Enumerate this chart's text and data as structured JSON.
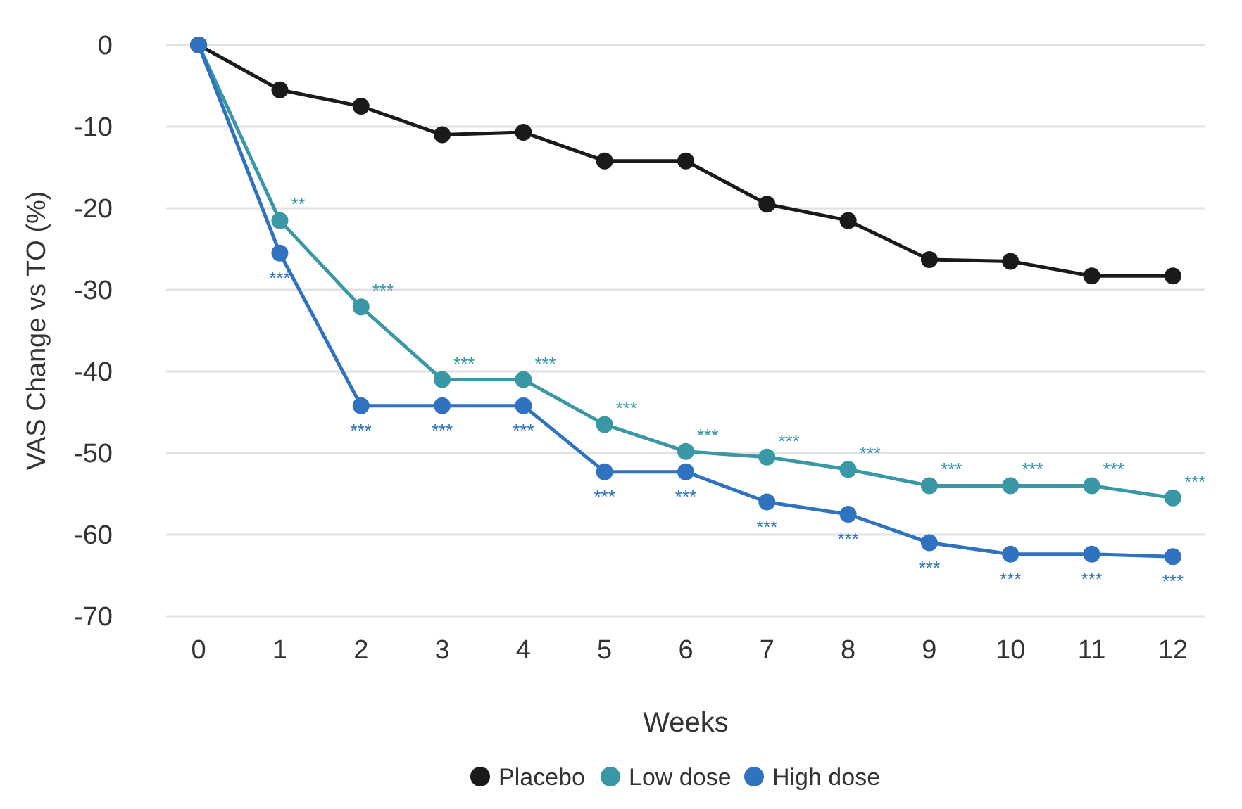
{
  "chart_data": {
    "type": "line",
    "xlabel": "Weeks",
    "ylabel": "VAS Change vs TO (%)",
    "x": [
      0,
      1,
      2,
      3,
      4,
      5,
      6,
      7,
      8,
      9,
      10,
      11,
      12
    ],
    "xlim": [
      -0.4,
      12.4
    ],
    "xticks": [
      0,
      1,
      2,
      3,
      4,
      5,
      6,
      7,
      8,
      9,
      10,
      11,
      12
    ],
    "ylim": [
      -70,
      0
    ],
    "yticks": [
      0,
      -10,
      -20,
      -30,
      -40,
      -50,
      -60,
      -70
    ],
    "grid": "y",
    "legend": "bottom",
    "marker": "circle",
    "line_style": "solid",
    "series": [
      {
        "name": "Placebo",
        "color": "#1a1a1a",
        "values": [
          0,
          -5.5,
          -7.5,
          -11,
          -10.7,
          -14.2,
          -14.2,
          -19.5,
          -21.5,
          -26.3,
          -26.5,
          -28.3,
          -28.3
        ]
      },
      {
        "name": "Low dose",
        "color": "#3a98a6",
        "values": [
          0,
          -21.5,
          -32.1,
          -41,
          -41,
          -46.5,
          -49.8,
          -50.5,
          -52,
          -54,
          -54,
          -54,
          -55.5
        ],
        "value_labels": [
          null,
          "**",
          "***",
          "***",
          "***",
          "***",
          "***",
          "***",
          "***",
          "***",
          "***",
          "***",
          "***"
        ]
      },
      {
        "name": "High dose",
        "color": "#2f72c0",
        "values": [
          0,
          -25.5,
          -44.2,
          -44.2,
          -44.2,
          -52.3,
          -52.3,
          -56,
          -57.5,
          -61,
          -62.4,
          -62.4,
          -62.7
        ],
        "value_labels": [
          null,
          "***",
          "***",
          "***",
          "***",
          "***",
          "***",
          "***",
          "***",
          "***",
          "***",
          "***",
          "***"
        ]
      }
    ]
  }
}
